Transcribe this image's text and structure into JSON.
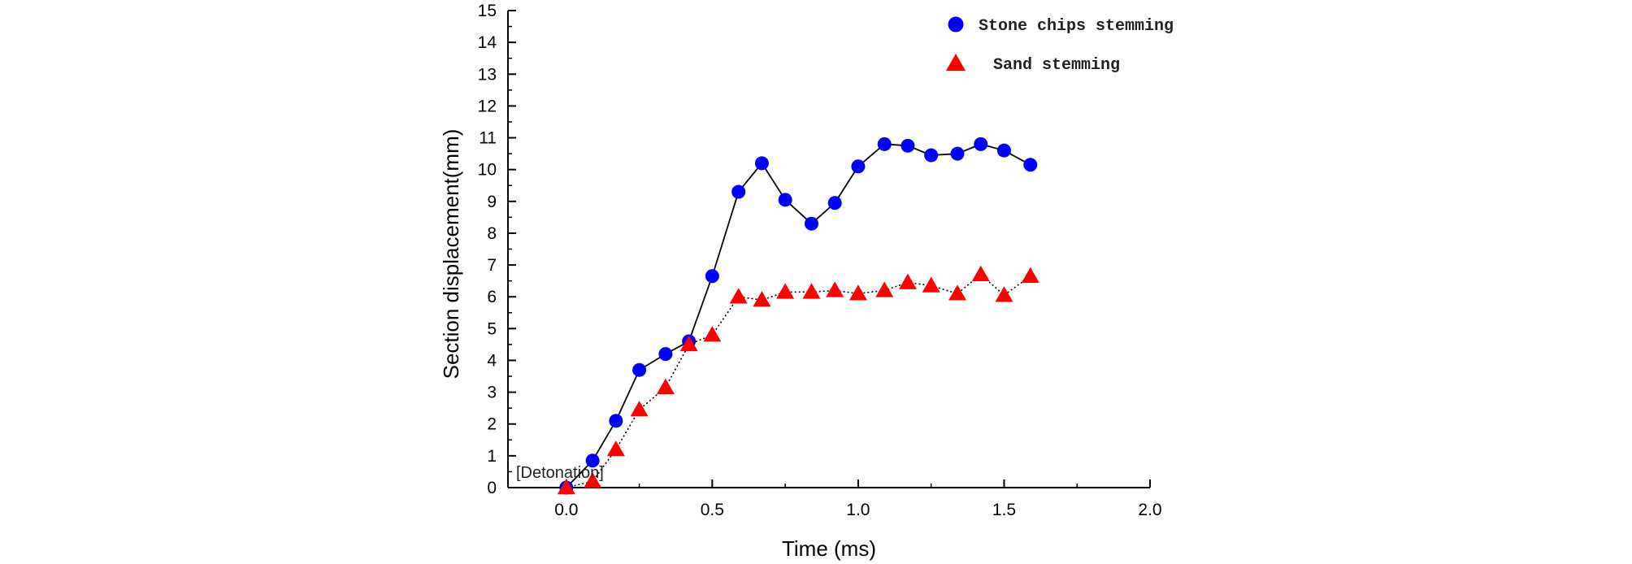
{
  "chart_data": {
    "type": "scatter",
    "xlabel": "Time (ms)",
    "ylabel": "Section displacement(mm)",
    "xlim": [
      -0.2,
      2.0
    ],
    "ylim": [
      0,
      15
    ],
    "x_ticks": [
      "0.0",
      "0.5",
      "1.0",
      "1.5",
      "2.0"
    ],
    "x_tick_values": [
      0.0,
      0.5,
      1.0,
      1.5,
      2.0
    ],
    "y_ticks": [
      "0",
      "1",
      "2",
      "3",
      "4",
      "5",
      "6",
      "7",
      "8",
      "9",
      "10",
      "11",
      "12",
      "13",
      "14",
      "15"
    ],
    "y_tick_values": [
      0,
      1,
      2,
      3,
      4,
      5,
      6,
      7,
      8,
      9,
      10,
      11,
      12,
      13,
      14,
      15
    ],
    "legend_position": "top-right",
    "annotation": "[Detonation]",
    "series": [
      {
        "name": "Stone chips stemming",
        "marker": "circle",
        "color": "#0000ff",
        "line": "solid",
        "x": [
          0.0,
          0.09,
          0.17,
          0.25,
          0.34,
          0.42,
          0.5,
          0.59,
          0.67,
          0.75,
          0.84,
          0.92,
          1.0,
          1.09,
          1.17,
          1.25,
          1.34,
          1.42,
          1.5,
          1.59
        ],
        "y": [
          0.0,
          0.85,
          2.1,
          3.7,
          4.2,
          4.6,
          6.65,
          9.3,
          10.2,
          9.05,
          8.3,
          8.95,
          10.1,
          10.8,
          10.75,
          10.45,
          10.5,
          10.8,
          10.6,
          10.15
        ]
      },
      {
        "name": "Sand stemming",
        "marker": "triangle",
        "color": "#ff0000",
        "line": "dotted",
        "x": [
          0.0,
          0.09,
          0.17,
          0.25,
          0.34,
          0.42,
          0.5,
          0.59,
          0.67,
          0.75,
          0.84,
          0.92,
          1.0,
          1.09,
          1.17,
          1.25,
          1.34,
          1.42,
          1.5,
          1.59
        ],
        "y": [
          0.0,
          0.2,
          1.2,
          2.45,
          3.15,
          4.5,
          4.8,
          6.0,
          5.9,
          6.15,
          6.15,
          6.2,
          6.1,
          6.2,
          6.45,
          6.35,
          6.1,
          6.7,
          6.05,
          6.65
        ]
      }
    ]
  }
}
